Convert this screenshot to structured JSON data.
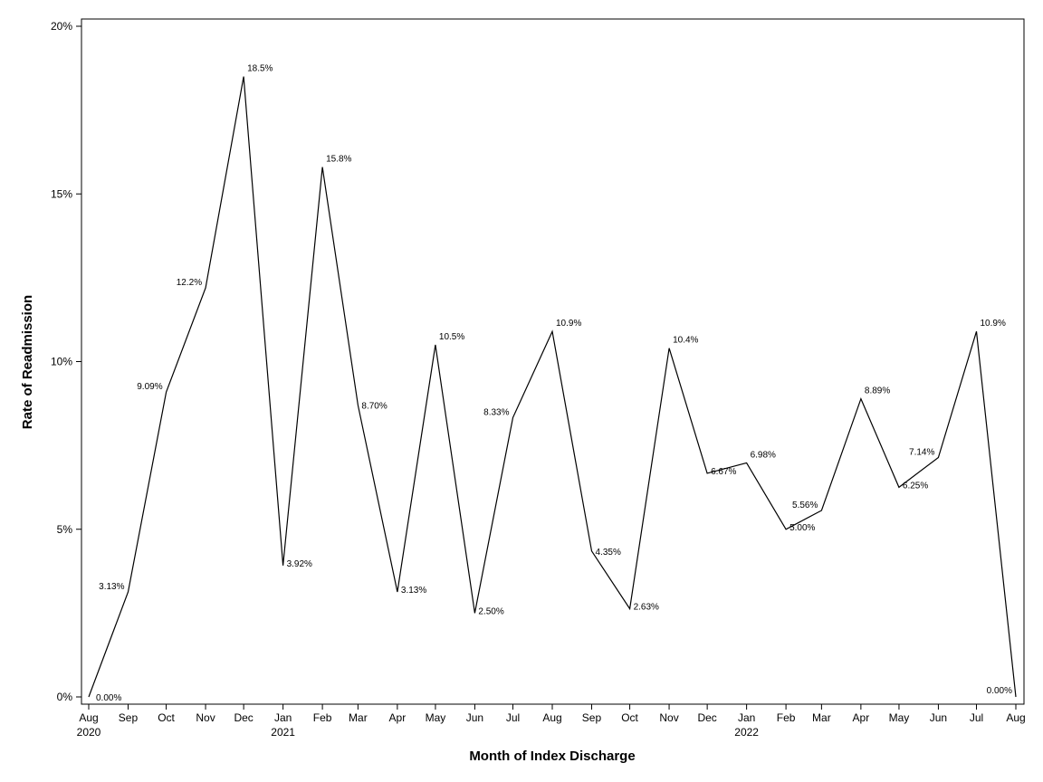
{
  "chart_data": {
    "type": "line",
    "xlabel": "Month of Index Discharge",
    "ylabel": "Rate of Readmission",
    "ylim": [
      0,
      20
    ],
    "yticks": [
      {
        "value": 0,
        "label": "0%"
      },
      {
        "value": 5,
        "label": "5%"
      },
      {
        "value": 10,
        "label": "10%"
      },
      {
        "value": 15,
        "label": "15%"
      },
      {
        "value": 20,
        "label": "20%"
      }
    ],
    "categories": [
      "Aug",
      "Sep",
      "Oct",
      "Nov",
      "Dec",
      "Jan",
      "Feb",
      "Mar",
      "Apr",
      "May",
      "Jun",
      "Jul",
      "Aug",
      "Sep",
      "Oct",
      "Nov",
      "Dec",
      "Jan",
      "Feb",
      "Mar",
      "Apr",
      "May",
      "Jun",
      "Jul",
      "Aug"
    ],
    "x": [
      "2020-08-01",
      "2020-09-01",
      "2020-10-01",
      "2020-11-01",
      "2020-12-01",
      "2021-01-01",
      "2021-02-01",
      "2021-03-01",
      "2021-04-01",
      "2021-05-01",
      "2021-06-01",
      "2021-07-01",
      "2021-08-01",
      "2021-09-01",
      "2021-10-01",
      "2021-11-01",
      "2021-12-01",
      "2022-01-01",
      "2022-02-01",
      "2022-03-01",
      "2022-04-01",
      "2022-05-01",
      "2022-06-01",
      "2022-07-01",
      "2022-08-01"
    ],
    "year_labels": [
      {
        "index": 0,
        "label": "2020"
      },
      {
        "index": 5,
        "label": "2021"
      },
      {
        "index": 17,
        "label": "2022"
      }
    ],
    "values": [
      0.0,
      3.13,
      9.09,
      12.2,
      18.5,
      3.92,
      15.8,
      8.7,
      3.13,
      10.5,
      2.5,
      8.33,
      10.9,
      4.35,
      2.63,
      10.4,
      6.67,
      6.98,
      5.0,
      5.56,
      8.89,
      6.25,
      7.14,
      10.9,
      0.0
    ],
    "value_labels": [
      "0.00%",
      "3.13%",
      "9.09%",
      "12.2%",
      "18.5%",
      "3.92%",
      "15.8%",
      "8.70%",
      "3.13%",
      "10.5%",
      "2.50%",
      "8.33%",
      "10.9%",
      "4.35%",
      "2.63%",
      "10.4%",
      "6.67%",
      "6.98%",
      "5.00%",
      "5.56%",
      "8.89%",
      "6.25%",
      "7.14%",
      "10.9%",
      "0.00%"
    ],
    "grid": false,
    "line_color": "#000000"
  }
}
